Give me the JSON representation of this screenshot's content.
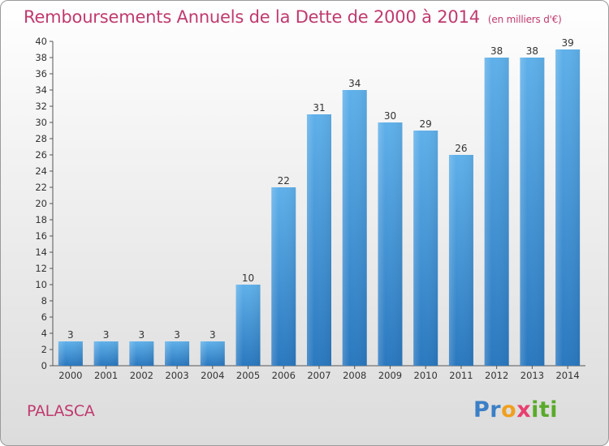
{
  "header": {
    "title": "Remboursements Annuels de la Dette de 2000 à 2014",
    "unit": "(en milliers d'€)"
  },
  "footer": {
    "commune": "PALASCA",
    "logo_text": "Proxiti"
  },
  "colors": {
    "title": "#c03a6e",
    "bar_top": "#5fb0ea",
    "bar_bottom": "#2a78bf",
    "axis": "#444444"
  },
  "chart_data": {
    "type": "bar",
    "title": "Remboursements Annuels de la Dette de 2000 à 2014",
    "xlabel": "",
    "ylabel": "",
    "categories": [
      "2000",
      "2001",
      "2002",
      "2003",
      "2004",
      "2005",
      "2006",
      "2007",
      "2008",
      "2009",
      "2010",
      "2011",
      "2012",
      "2013",
      "2014"
    ],
    "values": [
      3,
      3,
      3,
      3,
      3,
      10,
      22,
      31,
      34,
      30,
      29,
      26,
      38,
      38,
      39
    ],
    "ylim": [
      0,
      40
    ],
    "yticks": [
      0,
      2,
      4,
      6,
      8,
      10,
      12,
      14,
      16,
      18,
      20,
      22,
      24,
      26,
      28,
      30,
      32,
      34,
      36,
      38,
      40
    ],
    "grid": false,
    "legend": "none"
  }
}
